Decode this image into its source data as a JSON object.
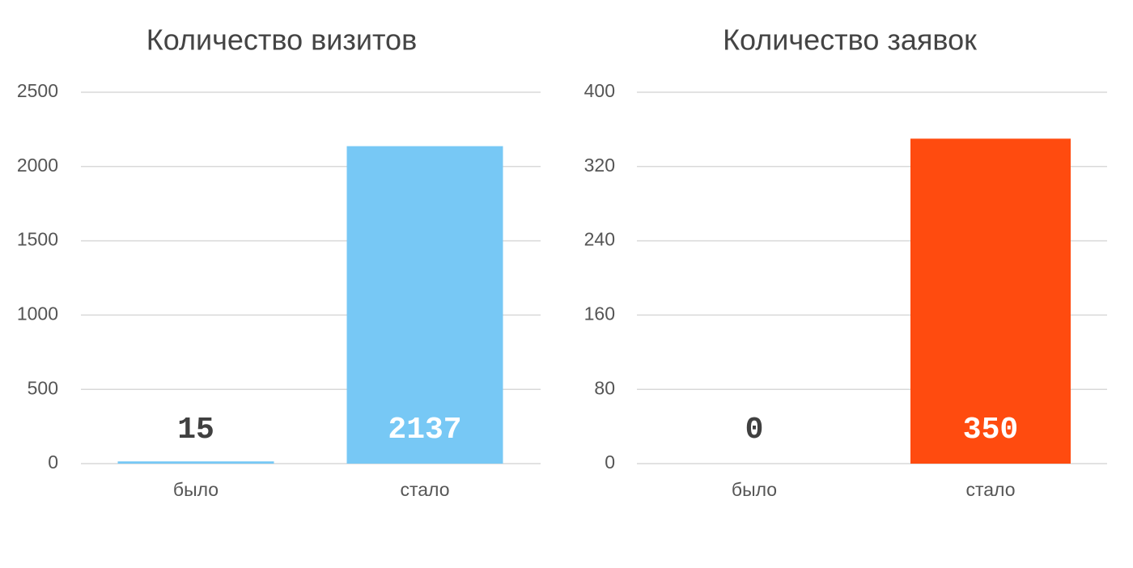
{
  "chart_data": [
    {
      "type": "bar",
      "title": "Количество визитов",
      "categories": [
        "было",
        "стало"
      ],
      "values": [
        15,
        2137
      ],
      "color": "#77c8f5",
      "ylim": [
        0,
        2500
      ],
      "yticks": [
        0,
        500,
        1000,
        1500,
        2000,
        2500
      ],
      "grid": true
    },
    {
      "type": "bar",
      "title": "Количество заявок",
      "categories": [
        "было",
        "стало"
      ],
      "values": [
        0,
        350
      ],
      "color": "#ff4b0f",
      "ylim": [
        0,
        400
      ],
      "yticks": [
        0,
        80,
        160,
        240,
        320,
        400
      ],
      "grid": true
    }
  ]
}
